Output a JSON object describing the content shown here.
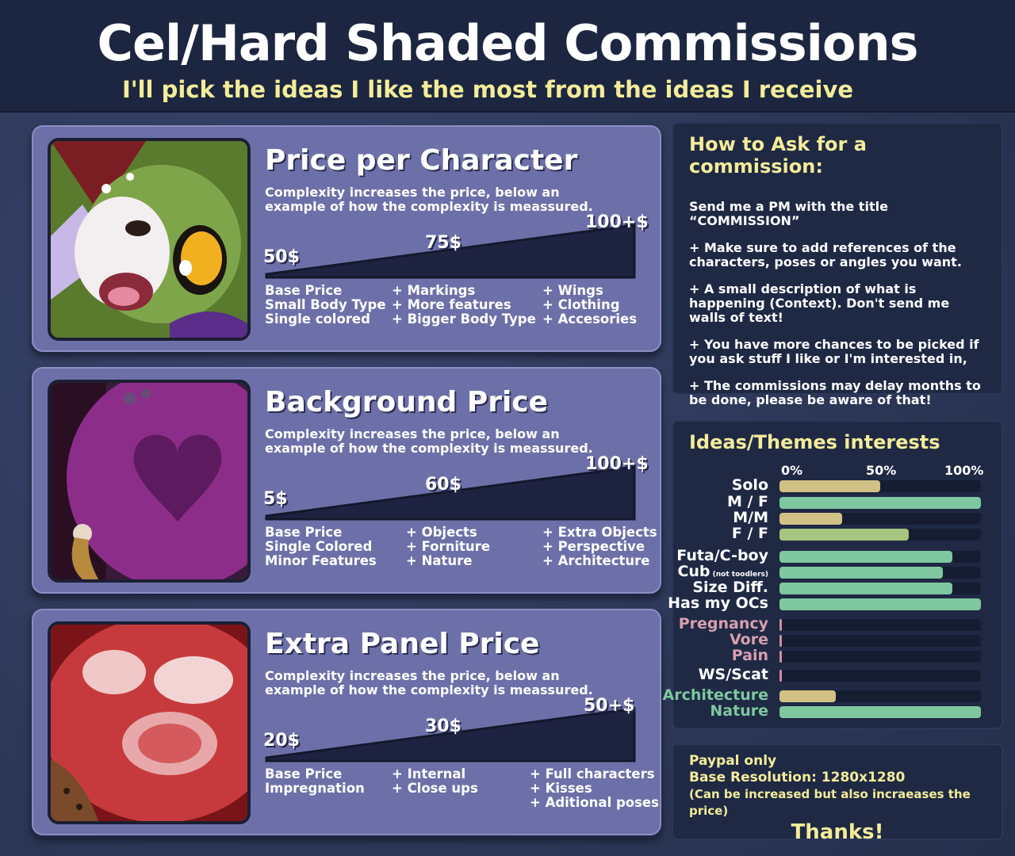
{
  "header": {
    "title": "Cel/Hard Shaded Commissions",
    "subtitle": "I'll pick the ideas I like the most from the ideas I receive"
  },
  "panels": [
    {
      "title": "Price per Character",
      "description": "Complexity increases the price, below an example of how the complexity is meassured.",
      "prices": [
        "50$",
        "75$",
        "100+$"
      ],
      "columns": [
        [
          "Base Price",
          "Small Body Type",
          "Single colored"
        ],
        [
          "+ Markings",
          "+ More features",
          "+ Bigger Body Type"
        ],
        [
          "+ Wings",
          "+ Clothing",
          "+ Accesories"
        ]
      ],
      "image": "character-portrait"
    },
    {
      "title": "Background Price",
      "description": "Complexity increases the price, below an example of how the complexity is meassured.",
      "prices": [
        "5$",
        "60$",
        "100+$"
      ],
      "columns": [
        [
          "Base Price",
          "Single Colored",
          "Minor Features"
        ],
        [
          "+ Objects",
          "+ Forniture",
          "+ Nature"
        ],
        [
          "+ Extra Objects",
          "+ Perspective",
          "+ Architecture"
        ]
      ],
      "image": "background-heart"
    },
    {
      "title": "Extra Panel Price",
      "description": "Complexity increases the price, below an example of how the complexity is meassured.",
      "prices": [
        "20$",
        "30$",
        "50+$"
      ],
      "columns": [
        [
          "Base Price",
          "Impregnation"
        ],
        [
          "+ Internal",
          "+ Close ups"
        ],
        [
          "+ Full characters",
          "+ Kisses",
          "+ Aditional poses"
        ]
      ],
      "image": "panel-closeup"
    }
  ],
  "howto": {
    "title": "How to Ask for a commission:",
    "intro": "Send me a PM with the title “COMMISSION”",
    "items": [
      "+ Make sure to add references of the characters, poses or angles you want.",
      "+ A small description of what is happening (Context). Don't send me walls of text!",
      "+ You have more chances to be picked if you ask stuff I like or I'm interested in,",
      "+ The commissions may delay months to be done, please be aware of that!"
    ]
  },
  "chart_data": {
    "type": "bar",
    "title": "Ideas/Themes interests",
    "orientation": "horizontal",
    "xlim": [
      0,
      100
    ],
    "ticks": [
      "0%",
      "50%",
      "100%"
    ],
    "categories": [
      "Solo",
      "M / F",
      "M/M",
      "F / F",
      "Futa/C-boy",
      "Cub",
      "Size Diff.",
      "Has my OCs",
      "Pregnancy",
      "Vore",
      "Pain",
      "WS/Scat",
      "Architecture",
      "Nature"
    ],
    "category_notes": {
      "Cub": "(not toodlers)"
    },
    "values": [
      50,
      100,
      31,
      64,
      86,
      81,
      86,
      100,
      1,
      1,
      1,
      1,
      28,
      100
    ],
    "colors": [
      "#d2c184",
      "#7fc7a0",
      "#d2c184",
      "#a6c57e",
      "#7fc7a0",
      "#7fc7a0",
      "#7fc7a0",
      "#7fc7a0",
      "#d28ba0",
      "#d28ba0",
      "#d28ba0",
      "#d28ba0",
      "#d2c184",
      "#7fc7a0"
    ],
    "label_colors": [
      "#ffffff",
      "#ffffff",
      "#ffffff",
      "#ffffff",
      "#ffffff",
      "#ffffff",
      "#ffffff",
      "#ffffff",
      "#d79fb1",
      "#d79fb1",
      "#d79fb1",
      "#ffffff",
      "#7fc7a0",
      "#7fc7a0"
    ]
  },
  "footer": {
    "lines": [
      "Paypal only",
      "Base Resolution: 1280x1280",
      "(Can be increased but also incraeases the price)"
    ],
    "thanks": "Thanks!"
  },
  "colors": {
    "panel": "#6d70a8",
    "accent_yellow": "#f3ec9a",
    "side_panel": "#1f2944"
  }
}
